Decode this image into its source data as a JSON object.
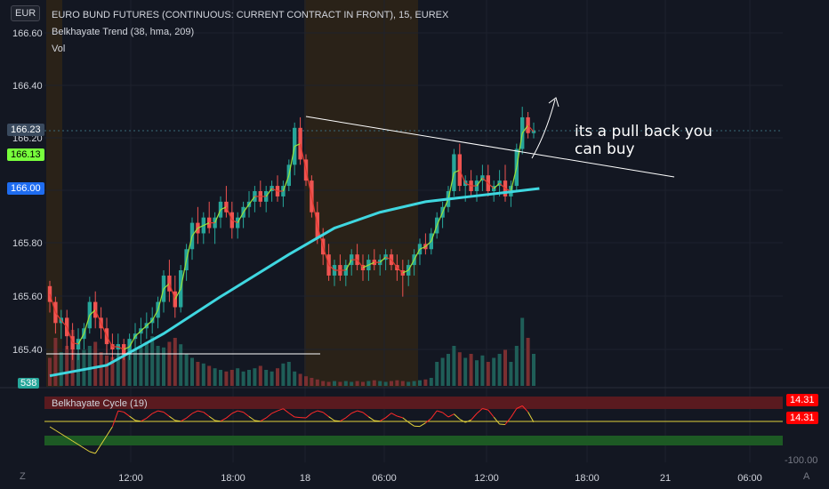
{
  "header": {
    "title": "EURO BUND FUTURES (CONTINUOUS: CURRENT CONTRACT IN FRONT), 15, EUREX",
    "indicator": "Belkhayate Trend (38, hma, 209)",
    "volume_label": "Vol",
    "currency": "EUR"
  },
  "annotation": {
    "line1": "its a pull back you",
    "line2": "can buy"
  },
  "badges": {
    "last_price": "166.23",
    "green_price": "166.13",
    "blue_price": "166.00",
    "volume": "538",
    "cycle_top": "14.31",
    "cycle_bottom": "14.31"
  },
  "oscillator": {
    "label": "Belkhayate Cycle  (19)",
    "scale_label": "-100.00"
  },
  "corner_labels": {
    "left": "Z",
    "right": "A"
  },
  "colors": {
    "background": "#131722",
    "up": "#26a69a",
    "down": "#ef5350",
    "trend_line": "#3fd7e0",
    "session": "#2a2218",
    "badge_red": "#ff0000",
    "badge_green": "#78ff3c",
    "badge_blue": "#1e6cf0",
    "cycle_red": "#ff2a2a",
    "cycle_yellow": "#e2d13b"
  },
  "chart_data": {
    "type": "candlestick",
    "title": "EURO BUND FUTURES (CONTINUOUS: CURRENT CONTRACT IN FRONT), 15, EUREX",
    "ylim": [
      165.36,
      166.66
    ],
    "y_ticks": [
      "166.60",
      "166.40",
      "166.20",
      "165.80",
      "165.60",
      "165.40"
    ],
    "x_ticks": [
      "12:00",
      "18:00",
      "18",
      "06:00",
      "12:00",
      "18:00",
      "21",
      "06:00"
    ],
    "candles": [
      [
        165.64,
        165.66,
        165.54,
        165.58
      ],
      [
        165.58,
        165.6,
        165.46,
        165.5
      ],
      [
        165.5,
        165.55,
        165.44,
        165.52
      ],
      [
        165.52,
        165.55,
        165.4,
        165.45
      ],
      [
        165.45,
        165.5,
        165.36,
        165.4
      ],
      [
        165.4,
        165.48,
        165.36,
        165.44
      ],
      [
        165.44,
        165.5,
        165.4,
        165.48
      ],
      [
        165.48,
        165.6,
        165.46,
        165.58
      ],
      [
        165.58,
        165.62,
        165.48,
        165.52
      ],
      [
        165.52,
        165.56,
        165.44,
        165.48
      ],
      [
        165.48,
        165.52,
        165.38,
        165.42
      ],
      [
        165.42,
        165.46,
        165.36,
        165.4
      ],
      [
        165.4,
        165.46,
        165.36,
        165.42
      ],
      [
        165.42,
        165.44,
        165.36,
        165.38
      ],
      [
        165.38,
        165.46,
        165.36,
        165.44
      ],
      [
        165.44,
        165.5,
        165.4,
        165.46
      ],
      [
        165.46,
        165.52,
        165.42,
        165.48
      ],
      [
        165.48,
        165.54,
        165.44,
        165.5
      ],
      [
        165.5,
        165.56,
        165.46,
        165.52
      ],
      [
        165.52,
        165.6,
        165.48,
        165.58
      ],
      [
        165.58,
        165.7,
        165.54,
        165.68
      ],
      [
        165.68,
        165.74,
        165.58,
        165.62
      ],
      [
        165.62,
        165.68,
        165.52,
        165.56
      ],
      [
        165.56,
        165.72,
        165.54,
        165.7
      ],
      [
        165.7,
        165.8,
        165.66,
        165.78
      ],
      [
        165.78,
        165.9,
        165.74,
        165.88
      ],
      [
        165.88,
        165.94,
        165.8,
        165.84
      ],
      [
        165.84,
        165.92,
        165.8,
        165.9
      ],
      [
        165.9,
        165.96,
        165.84,
        165.86
      ],
      [
        165.86,
        165.92,
        165.8,
        165.9
      ],
      [
        165.9,
        165.98,
        165.86,
        165.96
      ],
      [
        165.96,
        166.02,
        165.9,
        165.92
      ],
      [
        165.92,
        165.96,
        165.82,
        165.86
      ],
      [
        165.86,
        165.92,
        165.82,
        165.9
      ],
      [
        165.9,
        165.96,
        165.86,
        165.94
      ],
      [
        165.94,
        166.0,
        165.9,
        165.96
      ],
      [
        165.96,
        166.02,
        165.92,
        166.0
      ],
      [
        166.0,
        166.04,
        165.94,
        165.96
      ],
      [
        165.96,
        166.02,
        165.92,
        166.0
      ],
      [
        166.0,
        166.04,
        165.96,
        166.02
      ],
      [
        166.02,
        166.06,
        165.96,
        165.98
      ],
      [
        165.98,
        166.04,
        165.94,
        166.02
      ],
      [
        166.02,
        166.12,
        166.0,
        166.1
      ],
      [
        166.1,
        166.26,
        166.06,
        166.24
      ],
      [
        166.24,
        166.28,
        166.1,
        166.12
      ],
      [
        166.12,
        166.14,
        166.02,
        166.04
      ],
      [
        166.04,
        166.06,
        165.9,
        165.92
      ],
      [
        165.92,
        165.96,
        165.8,
        165.82
      ],
      [
        165.82,
        165.86,
        165.72,
        165.76
      ],
      [
        165.76,
        165.8,
        165.66,
        165.68
      ],
      [
        165.68,
        165.74,
        165.64,
        165.72
      ],
      [
        165.72,
        165.76,
        165.66,
        165.68
      ],
      [
        165.68,
        165.74,
        165.64,
        165.72
      ],
      [
        165.72,
        165.78,
        165.68,
        165.76
      ],
      [
        165.76,
        165.8,
        165.7,
        165.72
      ],
      [
        165.72,
        165.76,
        165.66,
        165.7
      ],
      [
        165.7,
        165.76,
        165.66,
        165.74
      ],
      [
        165.74,
        165.78,
        165.7,
        165.72
      ],
      [
        165.72,
        165.76,
        165.68,
        165.74
      ],
      [
        165.74,
        165.78,
        165.7,
        165.76
      ],
      [
        165.76,
        165.78,
        165.7,
        165.72
      ],
      [
        165.72,
        165.76,
        165.66,
        165.7
      ],
      [
        165.7,
        165.74,
        165.6,
        165.68
      ],
      [
        165.68,
        165.74,
        165.64,
        165.72
      ],
      [
        165.72,
        165.78,
        165.68,
        165.76
      ],
      [
        165.76,
        165.82,
        165.72,
        165.8
      ],
      [
        165.8,
        165.84,
        165.76,
        165.78
      ],
      [
        165.78,
        165.86,
        165.76,
        165.84
      ],
      [
        165.84,
        165.92,
        165.82,
        165.9
      ],
      [
        165.9,
        165.96,
        165.86,
        165.94
      ],
      [
        165.94,
        166.02,
        165.92,
        166.0
      ],
      [
        166.0,
        166.16,
        165.98,
        166.14
      ],
      [
        166.14,
        166.18,
        166.0,
        166.02
      ],
      [
        166.02,
        166.06,
        165.96,
        166.04
      ],
      [
        166.04,
        166.08,
        165.98,
        166.0
      ],
      [
        166.0,
        166.06,
        165.96,
        166.04
      ],
      [
        166.04,
        166.1,
        166.0,
        166.06
      ],
      [
        166.06,
        166.1,
        165.98,
        166.0
      ],
      [
        166.0,
        166.04,
        165.96,
        166.02
      ],
      [
        166.02,
        166.08,
        165.98,
        166.04
      ],
      [
        166.04,
        166.1,
        165.96,
        165.98
      ],
      [
        165.98,
        166.04,
        165.94,
        166.02
      ],
      [
        166.02,
        166.18,
        166.0,
        166.16
      ],
      [
        166.16,
        166.32,
        166.14,
        166.28
      ],
      [
        166.28,
        166.3,
        166.2,
        166.22
      ],
      [
        166.22,
        166.26,
        166.2,
        166.23
      ]
    ],
    "trend_line": [
      [
        0,
        165.3
      ],
      [
        10,
        165.34
      ],
      [
        20,
        165.46
      ],
      [
        30,
        165.6
      ],
      [
        42,
        165.76
      ],
      [
        50,
        165.86
      ],
      [
        58,
        165.92
      ],
      [
        66,
        165.96
      ],
      [
        74,
        165.98
      ],
      [
        82,
        166.0
      ],
      [
        86,
        166.01
      ]
    ],
    "volume": [
      0.35,
      0.6,
      0.42,
      0.5,
      0.7,
      0.4,
      0.45,
      0.5,
      0.55,
      0.42,
      0.38,
      0.36,
      0.4,
      0.5,
      0.58,
      0.45,
      0.5,
      0.55,
      0.62,
      0.5,
      0.48,
      0.55,
      0.6,
      0.52,
      0.4,
      0.35,
      0.3,
      0.28,
      0.25,
      0.22,
      0.2,
      0.18,
      0.2,
      0.22,
      0.18,
      0.2,
      0.22,
      0.25,
      0.2,
      0.18,
      0.22,
      0.28,
      0.3,
      0.18,
      0.15,
      0.12,
      0.1,
      0.08,
      0.06,
      0.05,
      0.06,
      0.05,
      0.06,
      0.05,
      0.06,
      0.05,
      0.06,
      0.07,
      0.06,
      0.05,
      0.06,
      0.07,
      0.06,
      0.05,
      0.06,
      0.07,
      0.08,
      0.1,
      0.3,
      0.35,
      0.4,
      0.5,
      0.42,
      0.35,
      0.4,
      0.32,
      0.38,
      0.3,
      0.35,
      0.4,
      0.45,
      0.3,
      0.5,
      0.85,
      0.6,
      0.4
    ]
  }
}
